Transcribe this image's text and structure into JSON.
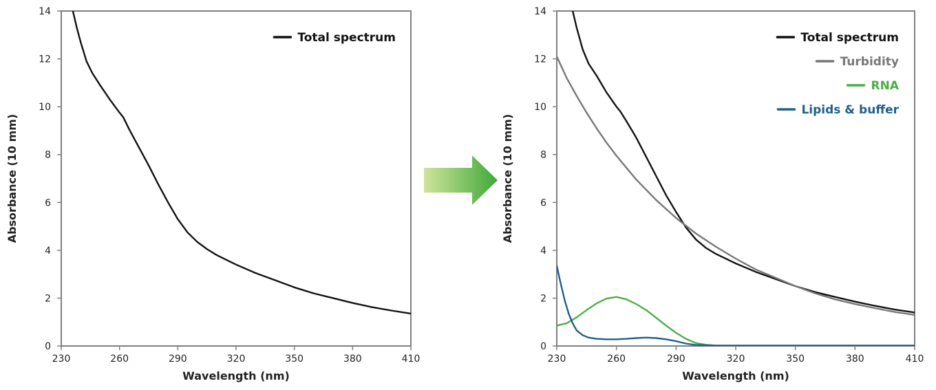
{
  "chart_data": [
    {
      "type": "line",
      "title": "",
      "xlabel": "Wavelength (nm)",
      "ylabel": "Absorbance (10 mm)",
      "xlim": [
        230,
        410
      ],
      "ylim": [
        0,
        14
      ],
      "xticks": [
        230,
        260,
        290,
        320,
        350,
        380,
        410
      ],
      "yticks": [
        0,
        2,
        4,
        6,
        8,
        10,
        12,
        14
      ],
      "grid": false,
      "legend_position": "top-right",
      "series": [
        {
          "name": "Total spectrum",
          "color": "#111111",
          "x": [
            236,
            238,
            240,
            243,
            246,
            250,
            255,
            260,
            262,
            265,
            270,
            275,
            280,
            285,
            290,
            295,
            300,
            305,
            310,
            320,
            330,
            340,
            350,
            360,
            370,
            380,
            390,
            400,
            410
          ],
          "y": [
            14.0,
            13.3,
            12.7,
            11.9,
            11.4,
            10.9,
            10.3,
            9.75,
            9.55,
            9.05,
            8.3,
            7.55,
            6.75,
            6.0,
            5.3,
            4.75,
            4.35,
            4.05,
            3.8,
            3.4,
            3.05,
            2.75,
            2.45,
            2.2,
            2.0,
            1.8,
            1.62,
            1.48,
            1.35
          ]
        }
      ]
    },
    {
      "type": "line",
      "title": "",
      "xlabel": "Wavelength (nm)",
      "ylabel": "Absorbance (10 mm)",
      "xlim": [
        230,
        410
      ],
      "ylim": [
        0,
        14
      ],
      "xticks": [
        230,
        260,
        290,
        320,
        350,
        380,
        410
      ],
      "yticks": [
        0,
        2,
        4,
        6,
        8,
        10,
        12,
        14
      ],
      "grid": false,
      "legend_position": "top-right",
      "series": [
        {
          "name": "Total spectrum",
          "color": "#111111",
          "x": [
            238,
            240,
            243,
            246,
            250,
            255,
            260,
            262,
            265,
            270,
            275,
            280,
            285,
            290,
            295,
            300,
            305,
            310,
            320,
            330,
            340,
            350,
            360,
            370,
            380,
            390,
            400,
            410
          ],
          "y": [
            14.0,
            13.3,
            12.4,
            11.8,
            11.3,
            10.6,
            10.0,
            9.8,
            9.4,
            8.7,
            7.9,
            7.1,
            6.3,
            5.6,
            4.95,
            4.45,
            4.1,
            3.85,
            3.45,
            3.1,
            2.8,
            2.5,
            2.25,
            2.05,
            1.85,
            1.68,
            1.52,
            1.4
          ]
        },
        {
          "name": "Turbidity",
          "color": "#777777",
          "x": [
            230,
            235,
            240,
            245,
            250,
            255,
            260,
            265,
            270,
            280,
            290,
            300,
            310,
            320,
            330,
            340,
            350,
            360,
            370,
            380,
            390,
            400,
            410
          ],
          "y": [
            12.1,
            11.2,
            10.45,
            9.75,
            9.1,
            8.5,
            7.95,
            7.45,
            6.95,
            6.1,
            5.35,
            4.7,
            4.15,
            3.65,
            3.2,
            2.85,
            2.5,
            2.2,
            1.95,
            1.75,
            1.58,
            1.42,
            1.3
          ]
        },
        {
          "name": "RNA",
          "color": "#4cae48",
          "x": [
            230,
            235,
            240,
            245,
            250,
            255,
            260,
            265,
            270,
            275,
            280,
            285,
            290,
            295,
            300,
            305,
            310,
            315,
            320,
            340,
            360,
            380,
            410
          ],
          "y": [
            0.85,
            0.95,
            1.2,
            1.5,
            1.78,
            1.98,
            2.05,
            1.95,
            1.75,
            1.5,
            1.18,
            0.85,
            0.55,
            0.3,
            0.12,
            0.05,
            0.02,
            0.0,
            0.0,
            0.0,
            0.0,
            0.0,
            0.0
          ]
        },
        {
          "name": "Lipids & buffer",
          "color": "#1f5f8b",
          "x": [
            230,
            232,
            234,
            236,
            238,
            240,
            243,
            246,
            250,
            255,
            260,
            265,
            270,
            275,
            280,
            285,
            290,
            295,
            300,
            310,
            320,
            350,
            380,
            410
          ],
          "y": [
            3.35,
            2.6,
            1.9,
            1.35,
            0.95,
            0.65,
            0.45,
            0.35,
            0.3,
            0.28,
            0.28,
            0.3,
            0.33,
            0.35,
            0.33,
            0.28,
            0.2,
            0.1,
            0.04,
            0.02,
            0.02,
            0.02,
            0.02,
            0.02
          ]
        }
      ]
    }
  ]
}
